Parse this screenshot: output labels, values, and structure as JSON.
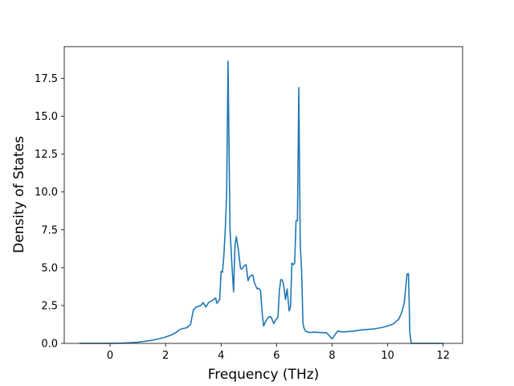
{
  "chart_data": {
    "type": "line",
    "xlabel": "Frequency (THz)",
    "ylabel": "Density of States",
    "xlim": [
      -1.65,
      12.7
    ],
    "ylim": [
      0.0,
      19.6
    ],
    "xticks": [
      0,
      2,
      4,
      6,
      8,
      10,
      12
    ],
    "yticks": [
      0.0,
      2.5,
      5.0,
      7.5,
      10.0,
      12.5,
      15.0,
      17.5
    ],
    "xtick_labels": [
      "0",
      "2",
      "4",
      "6",
      "8",
      "10",
      "12"
    ],
    "ytick_labels": [
      "0.0",
      "2.5",
      "5.0",
      "7.5",
      "10.0",
      "12.5",
      "15.0",
      "17.5"
    ],
    "grid": false,
    "line_color": "#1f77b4",
    "series": [
      {
        "x": [
          -1.1,
          -0.5,
          0.0,
          0.5,
          1.0,
          1.5,
          1.8,
          2.0,
          2.2,
          2.4,
          2.5,
          2.6,
          2.8,
          2.8,
          2.9,
          3.0,
          3.1,
          3.2,
          3.3,
          3.35,
          3.45,
          3.55,
          3.7,
          3.8,
          3.85,
          3.95,
          4.0,
          4.05,
          4.1,
          4.15,
          4.2,
          4.25,
          4.28,
          4.32,
          4.38,
          4.45,
          4.5,
          4.55,
          4.62,
          4.7,
          4.75,
          4.82,
          4.9,
          4.97,
          5.03,
          5.1,
          5.15,
          5.2,
          5.3,
          5.35,
          5.42,
          5.48,
          5.53,
          5.58,
          5.65,
          5.72,
          5.8,
          5.9,
          5.95,
          6.05,
          6.1,
          6.15,
          6.2,
          6.25,
          6.32,
          6.38,
          6.45,
          6.5,
          6.55,
          6.6,
          6.65,
          6.7,
          6.75,
          6.8,
          6.85,
          6.9,
          6.95,
          6.98,
          7.02,
          7.05,
          7.1,
          7.15,
          7.25,
          7.35,
          7.5,
          7.8,
          8.0,
          8.2,
          8.35,
          8.45,
          8.5,
          8.55,
          8.6,
          8.8,
          9.0,
          9.5,
          9.8,
          10.0,
          10.2,
          10.3,
          10.4,
          10.5,
          10.6,
          10.7,
          10.75,
          10.8,
          10.85,
          10.9,
          10.95,
          11.1,
          12.0
        ],
        "y": [
          0.0,
          0.0,
          0.0,
          0.02,
          0.08,
          0.2,
          0.32,
          0.42,
          0.55,
          0.75,
          0.9,
          0.97,
          1.05,
          1.1,
          1.25,
          2.2,
          2.4,
          2.45,
          2.55,
          2.7,
          2.4,
          2.7,
          2.85,
          3.0,
          2.65,
          2.9,
          4.75,
          4.7,
          5.8,
          7.5,
          9.8,
          18.65,
          14.0,
          7.6,
          5.5,
          3.4,
          6.5,
          7.05,
          6.2,
          4.95,
          4.9,
          5.1,
          5.2,
          4.15,
          4.4,
          4.5,
          4.5,
          4.0,
          3.6,
          3.65,
          3.5,
          2.0,
          1.15,
          1.35,
          1.6,
          1.75,
          1.75,
          1.3,
          1.5,
          1.75,
          3.5,
          4.2,
          4.2,
          3.9,
          2.9,
          3.6,
          2.15,
          2.4,
          5.3,
          5.2,
          5.3,
          8.1,
          8.1,
          16.9,
          6.6,
          4.8,
          1.3,
          1.05,
          0.88,
          0.8,
          0.78,
          0.72,
          0.72,
          0.74,
          0.72,
          0.7,
          0.3,
          0.82,
          0.76,
          0.75,
          0.77,
          0.78,
          0.78,
          0.82,
          0.88,
          0.95,
          1.05,
          1.15,
          1.28,
          1.45,
          1.6,
          2.0,
          2.7,
          4.6,
          4.6,
          0.7,
          0.0,
          0.0,
          0.0,
          0.0,
          0.0
        ]
      }
    ]
  }
}
